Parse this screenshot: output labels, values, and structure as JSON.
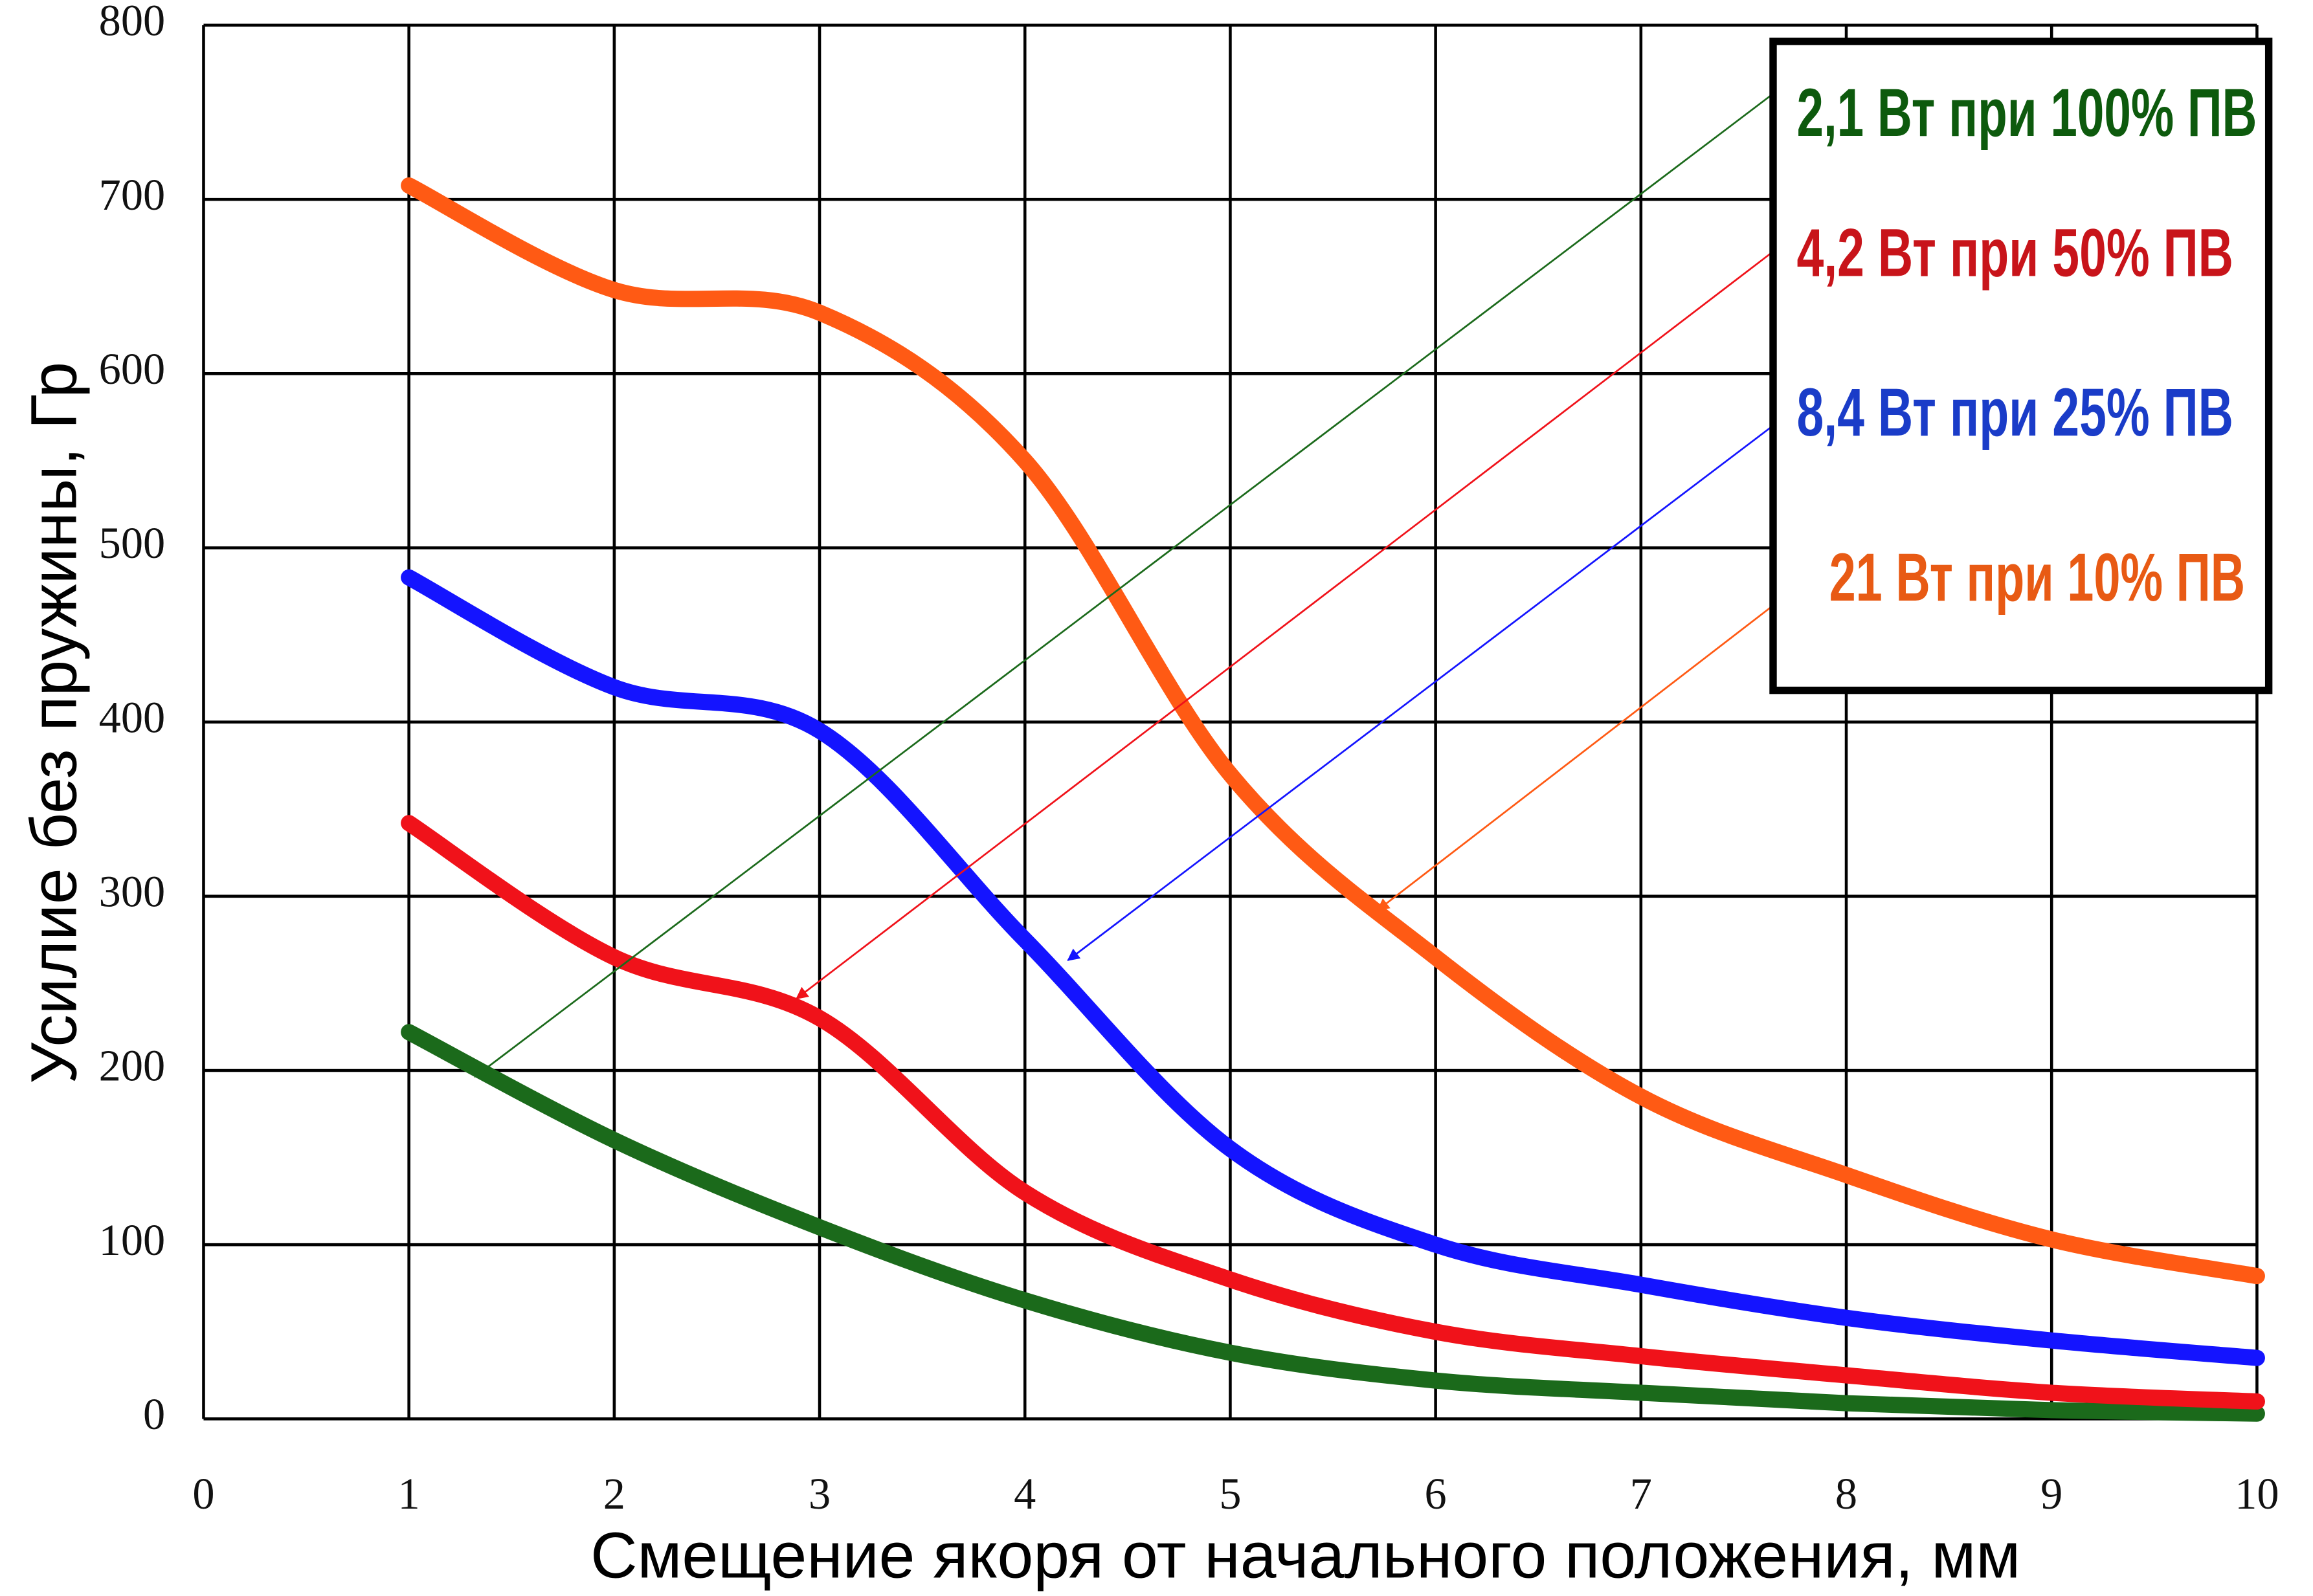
{
  "chart_data": {
    "type": "line",
    "x_label": "Смещение якоря от начального положения, мм",
    "y_label": "Усилие без пружины, Гр",
    "x": [
      1,
      2,
      3,
      4,
      5,
      6,
      7,
      8,
      9,
      10
    ],
    "series": [
      {
        "name": "2,1 Вт при 100% ПВ",
        "color": "#1b6a1b",
        "label_color": "#0d5a0d",
        "values": [
          222,
          160,
          110,
          68,
          38,
          22,
          15,
          9,
          5,
          3
        ]
      },
      {
        "name": "4,2 Вт при 50% ПВ",
        "color": "#f0121a",
        "label_color": "#c8141a",
        "values": [
          342,
          265,
          230,
          130,
          80,
          50,
          36,
          25,
          15,
          10
        ]
      },
      {
        "name": "8,4 Вт при 25% ПВ",
        "color": "#1414ff",
        "label_color": "#1a3cc8",
        "values": [
          483,
          420,
          395,
          275,
          155,
          100,
          77,
          58,
          45,
          35
        ]
      },
      {
        "name": "21 Вт при 10% ПВ",
        "color": "#ff5a14",
        "label_color": "#e85a14",
        "values": [
          708,
          648,
          635,
          550,
          370,
          265,
          185,
          140,
          103,
          82
        ]
      }
    ],
    "xlim": [
      0,
      10
    ],
    "xticks": [
      0,
      1,
      2,
      3,
      4,
      5,
      6,
      7,
      8,
      9,
      10
    ],
    "ylim": [
      0,
      800
    ],
    "yticks": [
      0,
      100,
      200,
      300,
      400,
      500,
      600,
      700,
      800
    ],
    "grid": true
  }
}
